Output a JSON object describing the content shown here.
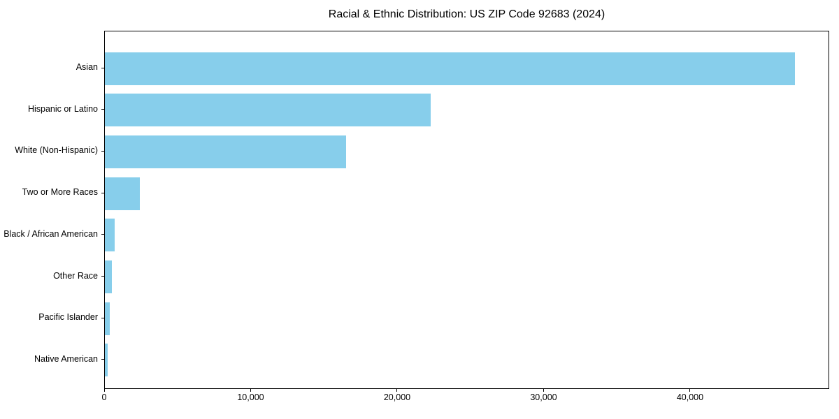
{
  "chart_data": {
    "type": "bar",
    "orientation": "horizontal",
    "title": "Racial & Ethnic Distribution: US ZIP Code 92683 (2024)",
    "xlabel": "",
    "ylabel": "",
    "categories": [
      "Asian",
      "Hispanic or Latino",
      "White (Non-Hispanic)",
      "Two or More Races",
      "Black / African American",
      "Other Race",
      "Pacific Islander",
      "Native American"
    ],
    "values": [
      47100,
      22250,
      16450,
      2400,
      670,
      480,
      340,
      190
    ],
    "xlim": [
      0,
      49500
    ],
    "x_ticks": [
      0,
      10000,
      20000,
      30000,
      40000
    ],
    "x_tick_labels": [
      "0",
      "10,000",
      "20,000",
      "30,000",
      "40,000"
    ],
    "bar_color": "#87CEEB",
    "grid": false,
    "legend": null,
    "background_color": "#ffffff",
    "axis_color": "#000000"
  }
}
